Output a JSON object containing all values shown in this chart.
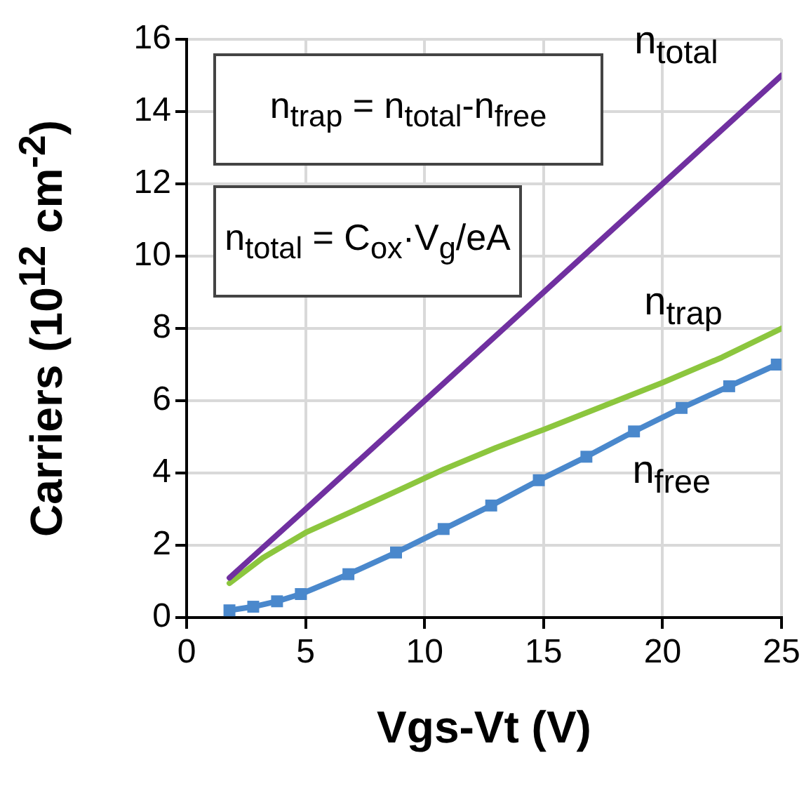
{
  "chart_data": {
    "type": "line",
    "xlabel": "Vgs-Vt (V)",
    "ylabel": "Carriers (10$^{12}$ cm$^{-2}$)",
    "xlim": [
      0,
      25
    ],
    "xticks": [
      0,
      5,
      10,
      15,
      20,
      25
    ],
    "ylim": [
      0,
      16
    ],
    "yticks": [
      0,
      2,
      4,
      6,
      8,
      10,
      12,
      14,
      16
    ],
    "grid": true,
    "legend": false,
    "series": [
      {
        "name": "n$_{total}$",
        "color": "#7030a0",
        "marker": "none",
        "x": [
          1.8,
          5,
          10,
          15,
          20,
          25
        ],
        "values": [
          1.1,
          3.0,
          6.0,
          9.0,
          12.0,
          15.0
        ]
      },
      {
        "name": "n$_{trap}$",
        "color": "#8cc63e",
        "marker": "none",
        "x": [
          1.8,
          3.2,
          5,
          7,
          9,
          10.8,
          13,
          15,
          17.5,
          20,
          22.5,
          25
        ],
        "values": [
          0.95,
          1.65,
          2.35,
          2.95,
          3.55,
          4.1,
          4.7,
          5.2,
          5.85,
          6.5,
          7.2,
          8.0
        ]
      },
      {
        "name": "n$_{free}$",
        "color": "#4a88cc",
        "marker": "square",
        "x": [
          1.8,
          2.8,
          3.8,
          4.8,
          6.8,
          8.8,
          10.8,
          12.8,
          14.8,
          16.8,
          18.8,
          20.8,
          22.8,
          24.8
        ],
        "values": [
          0.2,
          0.3,
          0.45,
          0.65,
          1.2,
          1.8,
          2.45,
          3.1,
          3.8,
          4.45,
          5.15,
          5.8,
          6.4,
          7.0
        ]
      }
    ],
    "annotations": [
      "n$_{trap}$ = n$_{total}$-n$_{free}$",
      "n$_{total}$ = C$_{ox}$·V$_{g}$/eA"
    ]
  }
}
